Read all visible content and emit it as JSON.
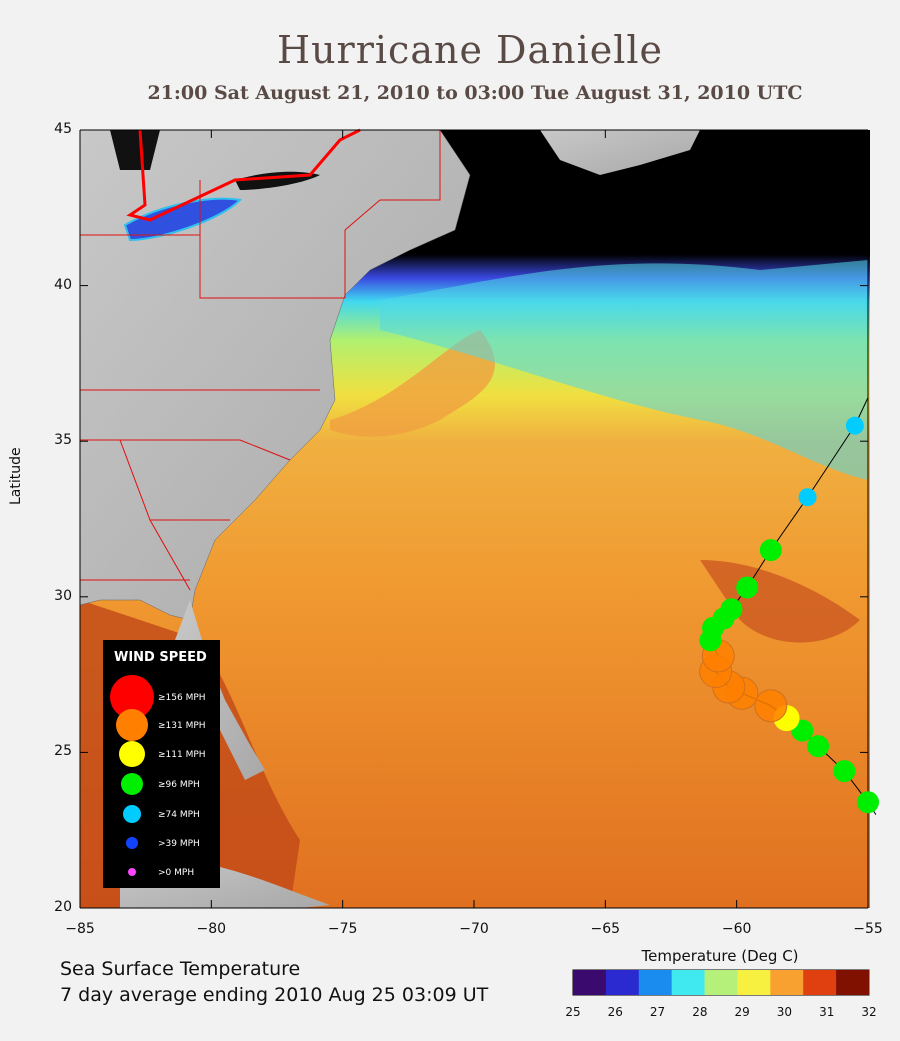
{
  "title": "Hurricane Danielle",
  "subtitle": "21:00 Sat August 21, 2010 to 03:00 Tue August 31, 2010  UTC",
  "axes": {
    "ylabel": "Latitude",
    "lat_ticks": [
      "45",
      "40",
      "35",
      "30",
      "25",
      "20"
    ],
    "lon_ticks": [
      "−85",
      "−80",
      "−75",
      "−70",
      "−65",
      "−60",
      "−55"
    ]
  },
  "caption": {
    "line1": "Sea Surface Temperature",
    "line2": "7 day average ending 2010 Aug 25 03:09 UT"
  },
  "colorbar": {
    "title": "Temperature (Deg C)",
    "ticks": [
      "25",
      "26",
      "27",
      "28",
      "29",
      "30",
      "31",
      "32"
    ],
    "colors": [
      "#3a0a6e",
      "#2a2ad0",
      "#1a8cf0",
      "#40e8f0",
      "#b4f07a",
      "#f8f040",
      "#f8a030",
      "#e04010",
      "#801000"
    ]
  },
  "legend": {
    "title": "WIND SPEED",
    "items": [
      {
        "label": "≥156 MPH",
        "color": "#ff0000"
      },
      {
        "label": "≥131 MPH",
        "color": "#ff8000"
      },
      {
        "label": "≥111 MPH",
        "color": "#ffff00"
      },
      {
        "label": "≥96 MPH",
        "color": "#00ee00"
      },
      {
        "label": "≥74 MPH",
        "color": "#00ccff"
      },
      {
        "label": ">39 MPH",
        "color": "#1144ff"
      },
      {
        "label": ">0 MPH",
        "color": "#ff44ff"
      }
    ]
  },
  "track": {
    "points": [
      {
        "lon": -55.0,
        "lat": 23.4,
        "category": "96"
      },
      {
        "lon": -55.9,
        "lat": 24.4,
        "category": "96"
      },
      {
        "lon": -56.9,
        "lat": 25.2,
        "category": "96"
      },
      {
        "lon": -57.5,
        "lat": 25.7,
        "category": "96"
      },
      {
        "lon": -58.1,
        "lat": 26.1,
        "category": "111"
      },
      {
        "lon": -58.7,
        "lat": 26.5,
        "category": "131"
      },
      {
        "lon": -59.8,
        "lat": 26.9,
        "category": "131"
      },
      {
        "lon": -60.3,
        "lat": 27.1,
        "category": "131"
      },
      {
        "lon": -60.8,
        "lat": 27.6,
        "category": "131"
      },
      {
        "lon": -60.7,
        "lat": 28.1,
        "category": "131"
      },
      {
        "lon": -61.0,
        "lat": 28.6,
        "category": "96"
      },
      {
        "lon": -60.9,
        "lat": 29.0,
        "category": "96"
      },
      {
        "lon": -60.5,
        "lat": 29.3,
        "category": "96"
      },
      {
        "lon": -60.2,
        "lat": 29.6,
        "category": "96"
      },
      {
        "lon": -59.6,
        "lat": 30.3,
        "category": "96"
      },
      {
        "lon": -58.7,
        "lat": 31.5,
        "category": "96"
      },
      {
        "lon": -57.3,
        "lat": 33.2,
        "category": "74"
      },
      {
        "lon": -55.5,
        "lat": 35.5,
        "category": "74"
      }
    ]
  }
}
